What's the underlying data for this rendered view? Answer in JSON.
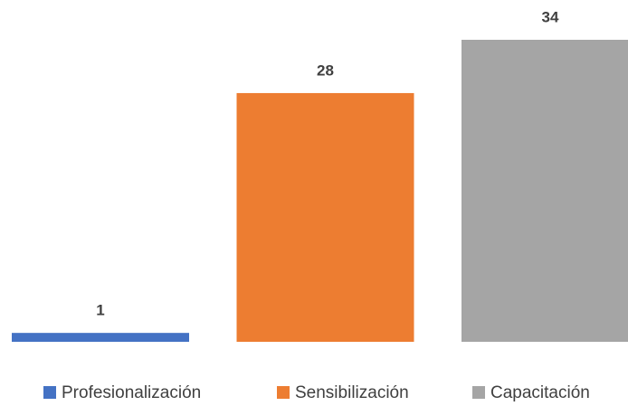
{
  "chart_data": {
    "type": "bar",
    "series": [
      {
        "name": "Profesionalización",
        "color": "#4472c4",
        "values": [
          1
        ]
      },
      {
        "name": "Sensibilización",
        "color": "#ed7d31",
        "values": [
          28
        ]
      },
      {
        "name": "Capacitación",
        "color": "#a5a5a5",
        "values": [
          34
        ]
      }
    ],
    "legend": "bottom"
  }
}
